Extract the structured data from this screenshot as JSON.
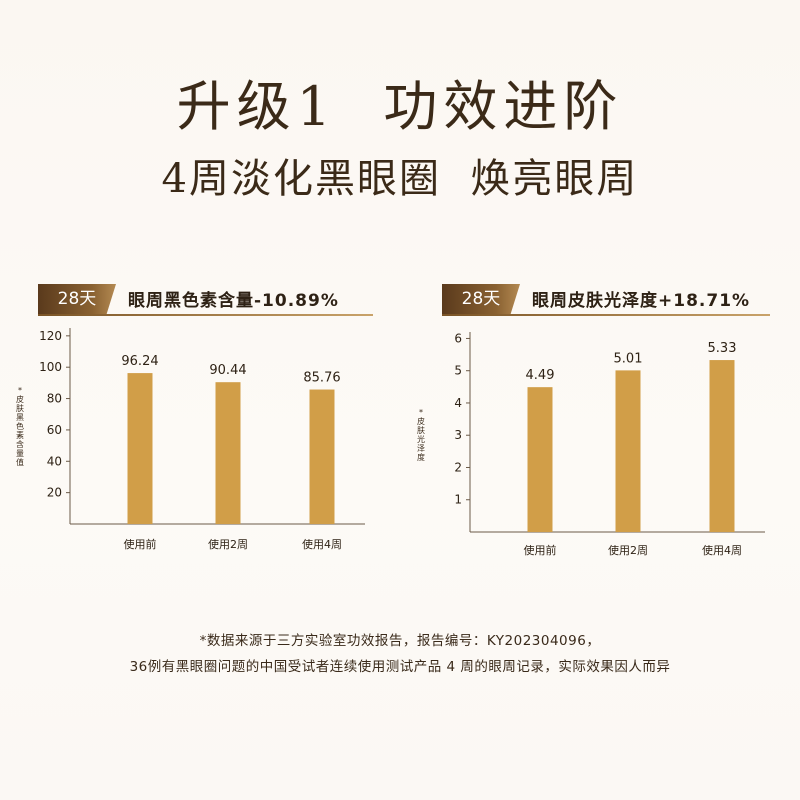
{
  "header": {
    "title": "升级1  功效进阶",
    "subtitle": "4周淡化黑眼圈  焕亮眼周"
  },
  "panels": [
    {
      "badge": "28天",
      "label": "眼周黑色素含量-10.89%",
      "ylabel": "*皮肤黑色素含量值"
    },
    {
      "badge": "28天",
      "label": "眼周皮肤光泽度+18.71%",
      "ylabel": "*皮肤光泽度"
    }
  ],
  "chart_data": [
    {
      "type": "bar",
      "title": "眼周黑色素含量-10.89%",
      "categories": [
        "使用前",
        "使用2周",
        "使用4周"
      ],
      "values": [
        96.24,
        90.44,
        85.76
      ],
      "value_labels": [
        "96.24",
        "90.44",
        "85.76"
      ],
      "ylabel": "*皮肤黑色素含量值",
      "ylim": [
        0,
        125
      ],
      "yticks": [
        20,
        40,
        60,
        80,
        100,
        120
      ],
      "ytick_labels": [
        "20",
        "40",
        "60",
        "80",
        "100",
        "120"
      ],
      "bar_color": "#d19e48",
      "grid": false
    },
    {
      "type": "bar",
      "title": "眼周皮肤光泽度+18.71%",
      "categories": [
        "使用前",
        "使用2周",
        "使用4周"
      ],
      "values": [
        4.49,
        5.01,
        5.33
      ],
      "value_labels": [
        "4.49",
        "5.01",
        "5.33"
      ],
      "ylabel": "*皮肤光泽度",
      "ylim": [
        0,
        6.2
      ],
      "yticks": [
        1,
        2,
        3,
        4,
        5,
        6
      ],
      "ytick_labels": [
        "1",
        "2",
        "3",
        "4",
        "5",
        "6"
      ],
      "bar_color": "#d19e48",
      "grid": false
    }
  ],
  "footnote": {
    "line1": "*数据来源于三方实验室功效报告，报告编号：KY202304096，",
    "line2": "36例有黑眼圈问题的中国受试者连续使用测试产品 4 周的眼周记录，实际效果因人而异"
  }
}
